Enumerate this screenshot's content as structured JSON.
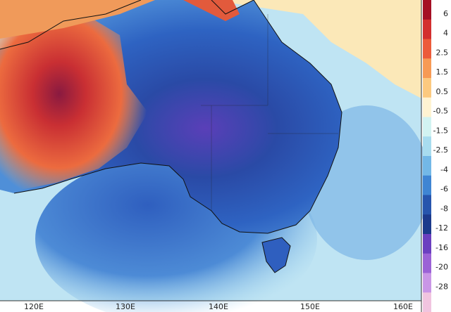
{
  "colorbar": {
    "labels": [
      6,
      4,
      2.5,
      1.5,
      0.5,
      -0.5,
      -1.5,
      -2.5,
      -4,
      -6,
      -8,
      -12,
      -16,
      -20,
      -28
    ],
    "colors": [
      "#a50f24",
      "#d32f2f",
      "#ec5b3a",
      "#f79a55",
      "#fcc97f",
      "#fff3d2",
      "#d2f3f2",
      "#a8dcef",
      "#73b8e7",
      "#3f85d3",
      "#2755ad",
      "#1c3a8c",
      "#6b3fc0",
      "#9b62d6",
      "#c996e6",
      "#f1c4df"
    ]
  },
  "x_axis": {
    "labels": [
      "120E",
      "130E",
      "140E",
      "150E",
      "160E"
    ]
  }
}
